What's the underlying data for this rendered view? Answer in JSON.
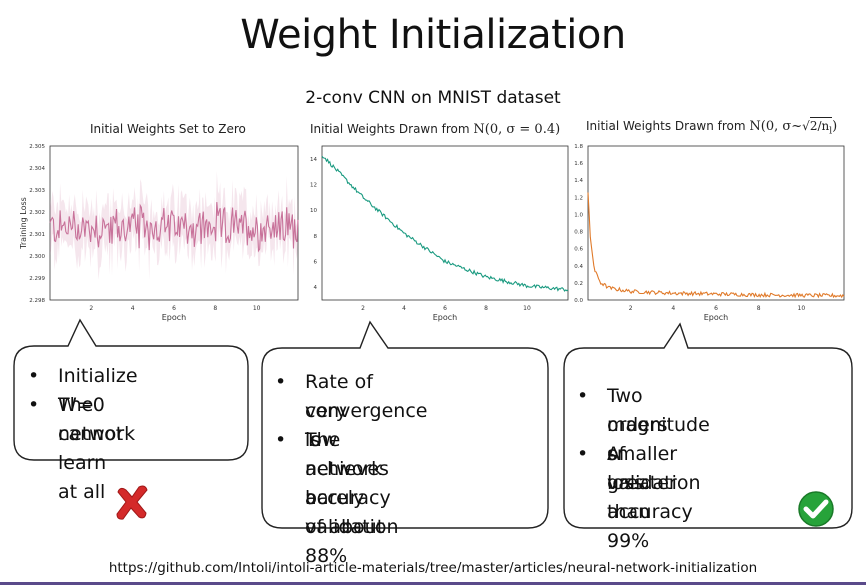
{
  "title": "Weight Initialization",
  "subtitle": "2-conv CNN on MNIST dataset",
  "charts": [
    {
      "title_text": "Initial Weights Set to Zero",
      "title_math": "",
      "title_math2": ""
    },
    {
      "title_text": "Initial Weights Drawn from ",
      "title_math": "N(0, σ = 0.4)",
      "title_math2": ""
    },
    {
      "title_text": "Initial Weights Drawn from ",
      "title_math": "N(0, σ~",
      "title_math2": "2/n",
      "title_math_sub": "l",
      "title_math_end": ")"
    }
  ],
  "chart_data": [
    {
      "type": "line",
      "title": "Initial Weights Set to Zero",
      "xlabel": "Epoch",
      "ylabel": "Training Loss",
      "xlim": [
        0,
        12
      ],
      "ylim": [
        2.298,
        2.305
      ],
      "xticks": [
        2,
        4,
        6,
        8,
        10
      ],
      "yticks": [
        "2.298",
        "2.299",
        "2.300",
        "2.301",
        "2.302",
        "2.303",
        "2.304",
        "2.305"
      ],
      "color": "#c8729a",
      "series": [
        {
          "x": [
            0,
            12
          ],
          "y_mean": 2.3013,
          "y_noise": 0.0012
        }
      ]
    },
    {
      "type": "line",
      "title": "Initial Weights Drawn from N(0, σ = 0.4)",
      "xlabel": "Epoch",
      "ylabel": "",
      "xlim": [
        0,
        12
      ],
      "ylim": [
        3,
        15
      ],
      "xticks": [
        2,
        4,
        6,
        8,
        10
      ],
      "yticks": [
        "4",
        "6",
        "8",
        "10",
        "12",
        "14"
      ],
      "color": "#1a9a80",
      "series": [
        {
          "x": [
            0,
            2,
            4,
            6,
            8,
            10,
            12
          ],
          "y": [
            14.3,
            11.0,
            8.2,
            6.0,
            4.8,
            4.1,
            3.8
          ]
        }
      ]
    },
    {
      "type": "line",
      "title": "Initial Weights Drawn from N(0, σ~√(2/n_l))",
      "xlabel": "Epoch",
      "ylabel": "",
      "xlim": [
        0,
        12
      ],
      "ylim": [
        0,
        1.8
      ],
      "xticks": [
        2,
        4,
        6,
        8,
        10
      ],
      "yticks": [
        "0.0",
        "0.2",
        "0.4",
        "0.6",
        "0.8",
        "1.0",
        "1.2",
        "1.4",
        "1.6",
        "1.8"
      ],
      "color": "#e07a2a",
      "series": [
        {
          "x": [
            0,
            0.1,
            0.3,
            0.6,
            1,
            2,
            4,
            8,
            12
          ],
          "y": [
            1.25,
            0.75,
            0.35,
            0.2,
            0.14,
            0.1,
            0.08,
            0.06,
            0.05
          ]
        }
      ]
    }
  ],
  "callouts": [
    {
      "bullets": [
        "Initialize W=0",
        "The network",
        "cannot learn at all"
      ]
    },
    {
      "bullets": [
        "Rate of convergence is",
        "very low",
        "The network barely",
        "achieves a validation",
        "accuracy of about 88%"
      ]
    },
    {
      "bullets": [
        "Two orders of",
        "magnitude smaller loss",
        "A validation accuracy",
        "greater than 99%"
      ]
    }
  ],
  "bullet_char": "•",
  "icons": {
    "cross": "red-cross-icon",
    "check": "green-check-icon"
  },
  "footer": "https://github.com/Intoli/intoli-article-materials/tree/master/articles/neural-network-initialization"
}
